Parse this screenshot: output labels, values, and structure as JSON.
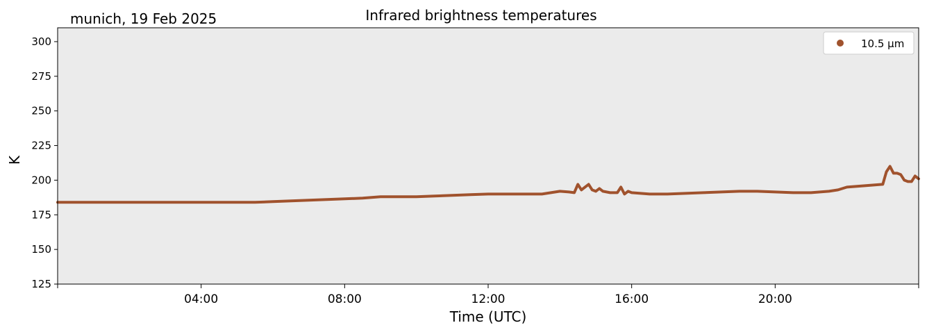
{
  "chart_data": {
    "type": "line",
    "title": "Infrared brightness temperatures",
    "subtitle": "munich, 19 Feb 2025",
    "xlabel": "Time (UTC)",
    "ylabel": "K",
    "xlim": [
      "00:00",
      "24:00"
    ],
    "ylim": [
      125,
      310
    ],
    "x_ticks": [
      "04:00",
      "08:00",
      "12:00",
      "16:00",
      "20:00"
    ],
    "y_ticks": [
      125,
      150,
      175,
      200,
      225,
      250,
      275,
      300
    ],
    "grid": false,
    "legend": "top-right",
    "plot_background": "#ebebeb",
    "series": [
      {
        "name": "10.5 µm",
        "color": "#a0522d",
        "x": [
          "00:00",
          "00:30",
          "01:00",
          "01:30",
          "02:00",
          "02:30",
          "03:00",
          "03:30",
          "04:00",
          "04:30",
          "05:00",
          "05:30",
          "06:00",
          "06:30",
          "07:00",
          "07:30",
          "08:00",
          "08:30",
          "09:00",
          "09:30",
          "10:00",
          "10:30",
          "11:00",
          "11:30",
          "12:00",
          "12:30",
          "13:00",
          "13:30",
          "14:00",
          "14:15",
          "14:24",
          "14:30",
          "14:36",
          "14:48",
          "14:54",
          "15:00",
          "15:06",
          "15:12",
          "15:24",
          "15:36",
          "15:42",
          "15:48",
          "15:54",
          "16:00",
          "16:30",
          "17:00",
          "17:30",
          "18:00",
          "18:30",
          "19:00",
          "19:30",
          "20:00",
          "20:30",
          "21:00",
          "21:30",
          "21:45",
          "22:00",
          "22:30",
          "23:00",
          "23:06",
          "23:12",
          "23:18",
          "23:24",
          "23:30",
          "23:36",
          "23:42",
          "23:48",
          "23:54",
          "24:00"
        ],
        "y": [
          184,
          184,
          184,
          184,
          184,
          184,
          184,
          184,
          184,
          184,
          184,
          184,
          184.5,
          185,
          185.5,
          186,
          186.5,
          187,
          188,
          188,
          188,
          188.5,
          189,
          189.5,
          190,
          190,
          190,
          190,
          192,
          191.5,
          191,
          197,
          193,
          197,
          193,
          192,
          194,
          192,
          191,
          191,
          195,
          190,
          192,
          191,
          190,
          190,
          190.5,
          191,
          191.5,
          192,
          192,
          191.5,
          191,
          191,
          192,
          193,
          195,
          196,
          197,
          206,
          210,
          205,
          205,
          204,
          200,
          199,
          199,
          203,
          201
        ]
      }
    ]
  }
}
